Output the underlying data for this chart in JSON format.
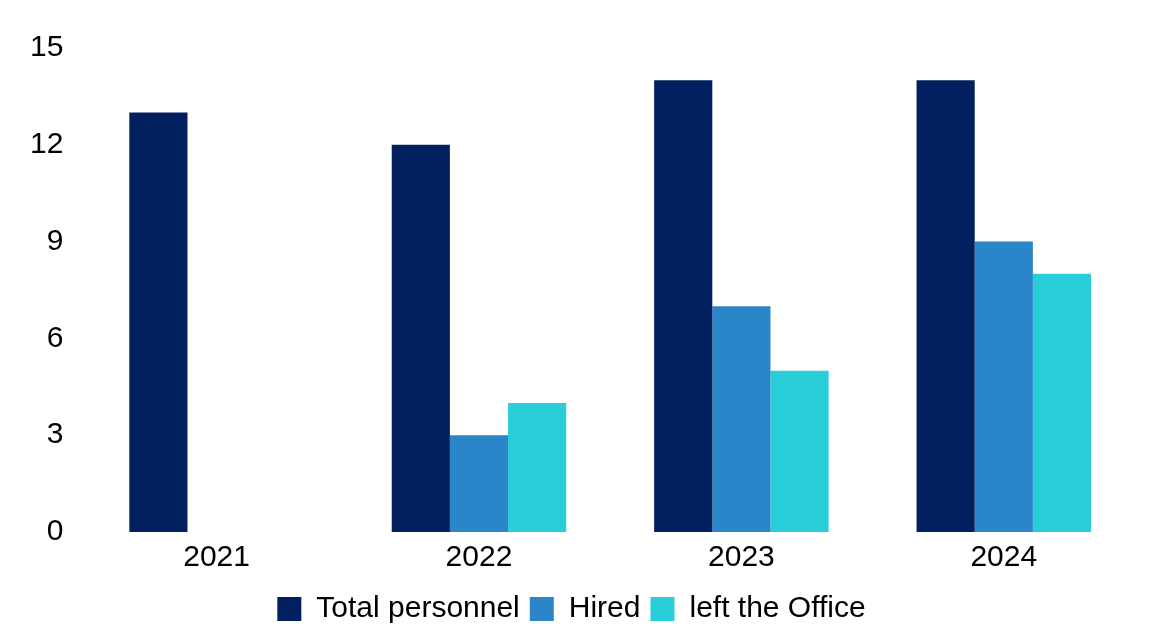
{
  "chart_data": {
    "type": "bar",
    "categories": [
      "2021",
      "2022",
      "2023",
      "2024"
    ],
    "series": [
      {
        "name": "Total personnel",
        "color": "#02205f",
        "values": [
          13,
          12,
          14,
          14
        ]
      },
      {
        "name": "Hired",
        "color": "#2a85c9",
        "values": [
          null,
          3,
          7,
          9
        ]
      },
      {
        "name": "left the Office",
        "color": "#29cfd8",
        "values": [
          null,
          4,
          5,
          8
        ]
      }
    ],
    "ylim": [
      0,
      15
    ],
    "yticks": [
      0,
      3,
      6,
      9,
      12,
      15
    ],
    "grid": false,
    "legend": "bottom"
  }
}
